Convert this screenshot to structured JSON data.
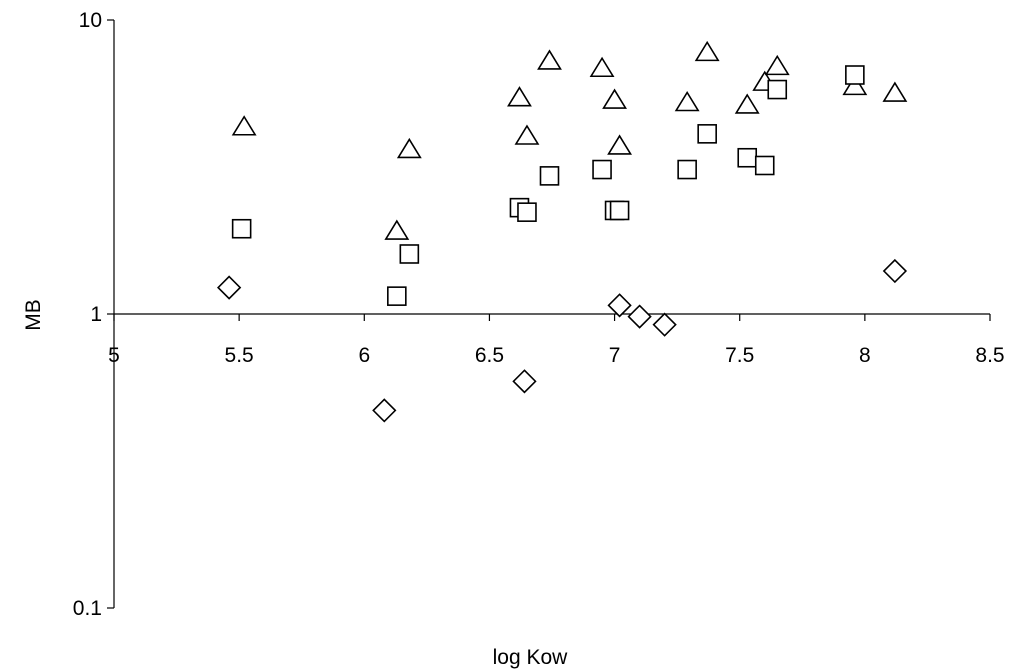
{
  "chart_data": {
    "type": "scatter",
    "xlabel": "log Kow",
    "ylabel": "MB",
    "xlim": [
      5,
      8.5
    ],
    "ylim": [
      0.1,
      10
    ],
    "y_scale": "log",
    "x_ticks": [
      5,
      5.5,
      6,
      6.5,
      7,
      7.5,
      8,
      8.5
    ],
    "x_tick_labels": [
      "5",
      "5.5",
      "6",
      "6.5",
      "7",
      "7.5",
      "8",
      "8.5"
    ],
    "y_ticks": [
      0.1,
      1,
      10
    ],
    "y_tick_labels": [
      "0.1",
      "1",
      "10"
    ],
    "grid": false,
    "x_axis_crosses_at_y": 1,
    "series": [
      {
        "marker": "triangle",
        "points": [
          [
            5.52,
            4.3
          ],
          [
            6.13,
            1.9
          ],
          [
            6.18,
            3.6
          ],
          [
            6.62,
            5.4
          ],
          [
            6.65,
            4.0
          ],
          [
            6.74,
            7.2
          ],
          [
            6.95,
            6.8
          ],
          [
            7.0,
            5.3
          ],
          [
            7.02,
            3.7
          ],
          [
            7.29,
            5.2
          ],
          [
            7.37,
            7.7
          ],
          [
            7.53,
            5.1
          ],
          [
            7.6,
            6.1
          ],
          [
            7.65,
            6.9
          ],
          [
            7.96,
            5.9
          ],
          [
            8.12,
            5.6
          ]
        ]
      },
      {
        "marker": "square",
        "points": [
          [
            5.51,
            1.95
          ],
          [
            6.13,
            1.15
          ],
          [
            6.18,
            1.6
          ],
          [
            6.62,
            2.3
          ],
          [
            6.65,
            2.22
          ],
          [
            6.74,
            2.95
          ],
          [
            6.95,
            3.1
          ],
          [
            7.0,
            2.25
          ],
          [
            7.02,
            2.25
          ],
          [
            7.29,
            3.1
          ],
          [
            7.37,
            4.1
          ],
          [
            7.53,
            3.4
          ],
          [
            7.6,
            3.2
          ],
          [
            7.65,
            5.8
          ],
          [
            7.96,
            6.5
          ]
        ]
      },
      {
        "marker": "diamond",
        "points": [
          [
            5.46,
            1.23
          ],
          [
            6.08,
            0.47
          ],
          [
            6.64,
            0.59
          ],
          [
            7.02,
            1.07
          ],
          [
            7.1,
            0.98
          ],
          [
            7.2,
            0.92
          ],
          [
            8.12,
            1.4
          ]
        ]
      }
    ]
  }
}
